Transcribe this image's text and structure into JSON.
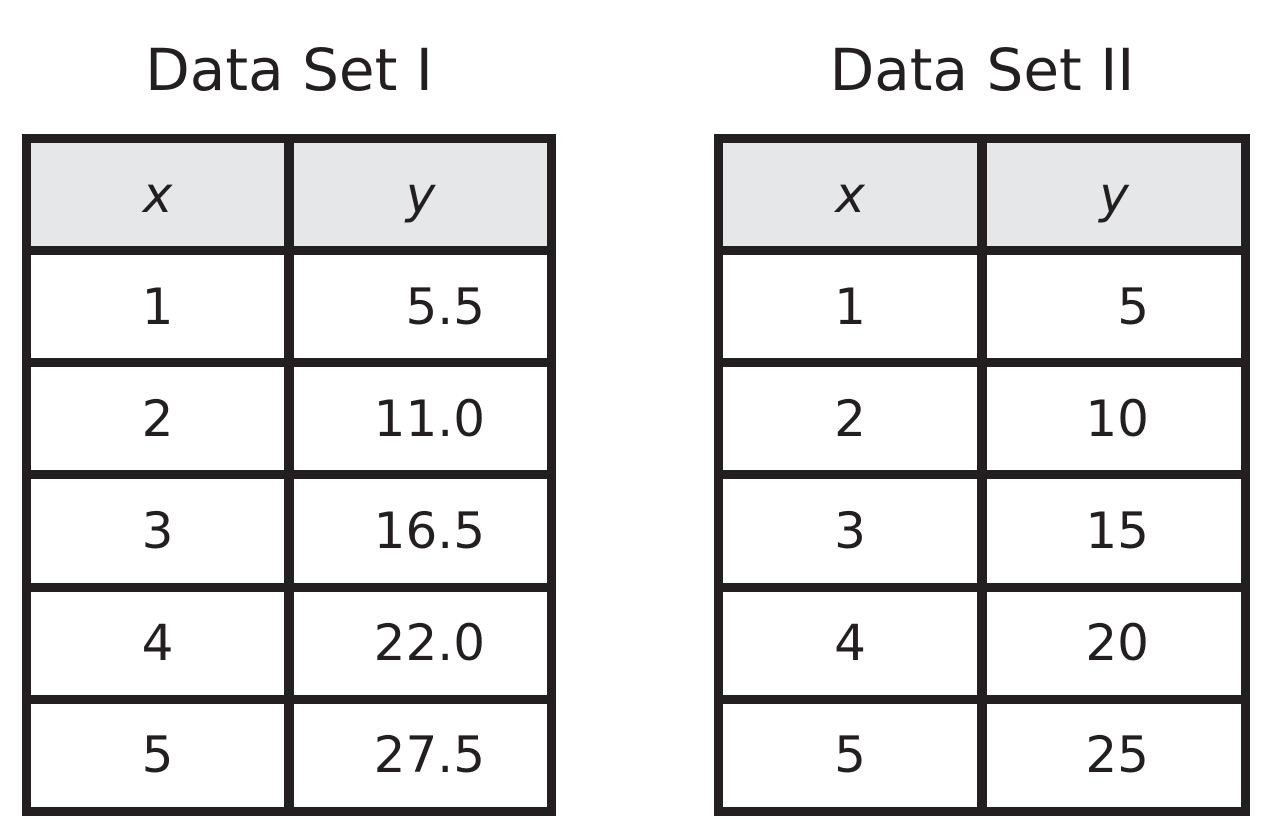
{
  "datasets": [
    {
      "title": "Data Set I",
      "headers": [
        "x",
        "y"
      ],
      "rows": [
        [
          "1",
          "5.5"
        ],
        [
          "2",
          "11.0"
        ],
        [
          "3",
          "16.5"
        ],
        [
          "4",
          "22.0"
        ],
        [
          "5",
          "27.5"
        ]
      ]
    },
    {
      "title": "Data Set II",
      "headers": [
        "x",
        "y"
      ],
      "rows": [
        [
          "1",
          "5"
        ],
        [
          "2",
          "10"
        ],
        [
          "3",
          "15"
        ],
        [
          "4",
          "20"
        ],
        [
          "5",
          "25"
        ]
      ]
    }
  ]
}
